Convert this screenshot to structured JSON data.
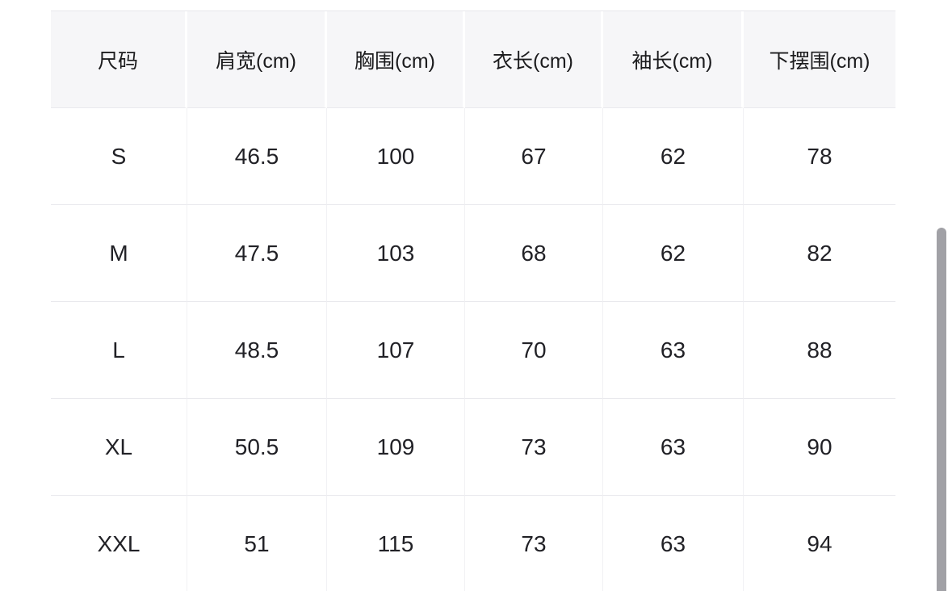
{
  "table": {
    "columns": [
      "尺码",
      "肩宽(cm)",
      "胸围(cm)",
      "衣长(cm)",
      "袖长(cm)",
      "下摆围(cm)"
    ],
    "rows": [
      [
        "S",
        46.5,
        100,
        67,
        62,
        78
      ],
      [
        "M",
        47.5,
        103,
        68,
        62,
        82
      ],
      [
        "L",
        48.5,
        107,
        70,
        63,
        88
      ],
      [
        "XL",
        50.5,
        109,
        73,
        63,
        90
      ],
      [
        "XXL",
        51,
        115,
        73,
        63,
        94
      ]
    ]
  },
  "colors": {
    "header_background": "#f6f6f8",
    "header_text": "#1c1c1e",
    "body_text": "#212126",
    "grid_line": "#e9e9ed",
    "scrollbar": "#a1a1a6",
    "page_background": "#ffffff"
  }
}
